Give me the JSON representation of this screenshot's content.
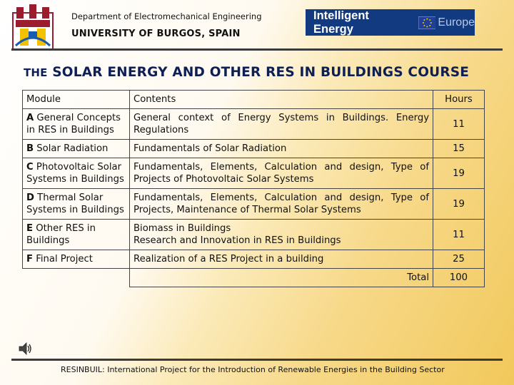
{
  "header": {
    "department": "Department of Electromechanical Engineering",
    "university": "UNIVERSITY OF BURGOS, SPAIN",
    "banner_text": "Intelligent Energy",
    "banner_europe": "Europe"
  },
  "title": {
    "prefix": "THE",
    "main": " SOLAR ENERGY AND OTHER RES IN BUILDINGS COURSE"
  },
  "table": {
    "headers": [
      "Module",
      "Contents",
      "Hours"
    ],
    "rows": [
      {
        "code": "A",
        "module": "General Concepts in RES in Buildings",
        "contents": "General context of Energy Systems in Buildings. Energy Regulations",
        "hours": "11"
      },
      {
        "code": "B",
        "module": "Solar Radiation",
        "contents": "Fundamentals of Solar Radiation",
        "hours": "15"
      },
      {
        "code": "C",
        "module": "Photovoltaic Solar Systems in Buildings",
        "contents": "Fundamentals, Elements, Calculation and design, Type of Projects of Photovoltaic Solar Systems",
        "hours": "19"
      },
      {
        "code": "D",
        "module": "Thermal Solar Systems in Buildings",
        "contents": "Fundamentals, Elements, Calculation and design, Type of Projects, Maintenance of Thermal Solar Systems",
        "hours": "19"
      },
      {
        "code": "E",
        "module": "Other RES in Buildings",
        "contents_line1": "Biomass in Buildings",
        "contents_line2": "Research and Innovation in RES in Buildings",
        "hours": "11"
      },
      {
        "code": "F",
        "module": "Final Project",
        "contents": "Realization of a RES Project in a building",
        "hours": "25"
      }
    ],
    "total_label": "Total",
    "total_value": "100"
  },
  "footer": "RESINBUIL: International Project for the Introduction of Renewable Energies in the Building Sector",
  "colors": {
    "title": "#0d1f55",
    "banner": "#123a80",
    "background_accent": "#f1c85a"
  }
}
